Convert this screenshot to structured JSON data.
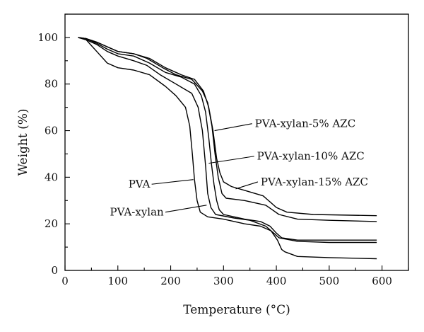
{
  "chart_data": {
    "type": "line",
    "xlabel": "Temperature (°C)",
    "ylabel": "Weight (%)",
    "xlim": [
      0,
      650
    ],
    "ylim": [
      0,
      110
    ],
    "xticks": [
      0,
      100,
      200,
      300,
      400,
      500,
      600
    ],
    "yticks": [
      0,
      20,
      40,
      60,
      80,
      100
    ],
    "x_minor_step": 50,
    "y_minor_step": 10,
    "grid": false,
    "legend": "none",
    "line_color": "#000000",
    "series": [
      {
        "name": "PVA",
        "points": [
          [
            25,
            100
          ],
          [
            40,
            99
          ],
          [
            60,
            94
          ],
          [
            80,
            89
          ],
          [
            100,
            87
          ],
          [
            130,
            86
          ],
          [
            160,
            84
          ],
          [
            190,
            79
          ],
          [
            210,
            75
          ],
          [
            228,
            70
          ],
          [
            236,
            62
          ],
          [
            241,
            50
          ],
          [
            245,
            39
          ],
          [
            250,
            30
          ],
          [
            256,
            25
          ],
          [
            270,
            23
          ],
          [
            300,
            22
          ],
          [
            340,
            20
          ],
          [
            370,
            19
          ],
          [
            390,
            17
          ],
          [
            402,
            13
          ],
          [
            410,
            9
          ],
          [
            416,
            8
          ],
          [
            440,
            6
          ],
          [
            500,
            5.5
          ],
          [
            590,
            5
          ]
        ]
      },
      {
        "name": "PVA-xylan",
        "points": [
          [
            25,
            100
          ],
          [
            40,
            99
          ],
          [
            60,
            97
          ],
          [
            80,
            94
          ],
          [
            100,
            92
          ],
          [
            130,
            90
          ],
          [
            155,
            88
          ],
          [
            180,
            84
          ],
          [
            210,
            80
          ],
          [
            240,
            76
          ],
          [
            252,
            70
          ],
          [
            260,
            60
          ],
          [
            266,
            45
          ],
          [
            270,
            33
          ],
          [
            276,
            27
          ],
          [
            285,
            24
          ],
          [
            320,
            22.5
          ],
          [
            350,
            21.5
          ],
          [
            380,
            19
          ],
          [
            395,
            16
          ],
          [
            405,
            14
          ],
          [
            440,
            12.5
          ],
          [
            500,
            12
          ],
          [
            590,
            12
          ]
        ]
      },
      {
        "name": "PVA-xylan-5% AZC",
        "points": [
          [
            25,
            100
          ],
          [
            40,
            99.5
          ],
          [
            60,
            98
          ],
          [
            80,
            96
          ],
          [
            100,
            94
          ],
          [
            130,
            93
          ],
          [
            155,
            91
          ],
          [
            185,
            87
          ],
          [
            210,
            84
          ],
          [
            240,
            82
          ],
          [
            260,
            77
          ],
          [
            270,
            72
          ],
          [
            278,
            62
          ],
          [
            284,
            50
          ],
          [
            290,
            40
          ],
          [
            297,
            33
          ],
          [
            305,
            31
          ],
          [
            340,
            30
          ],
          [
            380,
            28
          ],
          [
            405,
            24
          ],
          [
            440,
            22
          ],
          [
            500,
            21.5
          ],
          [
            590,
            21
          ]
        ]
      },
      {
        "name": "PVA-xylan-10% AZC",
        "points": [
          [
            25,
            100
          ],
          [
            40,
            99.5
          ],
          [
            60,
            97.5
          ],
          [
            80,
            95
          ],
          [
            100,
            93
          ],
          [
            130,
            92
          ],
          [
            160,
            89
          ],
          [
            190,
            85
          ],
          [
            220,
            83
          ],
          [
            245,
            80
          ],
          [
            258,
            75
          ],
          [
            266,
            68
          ],
          [
            272,
            57
          ],
          [
            277,
            46
          ],
          [
            282,
            37
          ],
          [
            287,
            30
          ],
          [
            292,
            26
          ],
          [
            300,
            24
          ],
          [
            340,
            22
          ],
          [
            370,
            21
          ],
          [
            388,
            19
          ],
          [
            400,
            16
          ],
          [
            410,
            14
          ],
          [
            440,
            13
          ],
          [
            500,
            13
          ],
          [
            590,
            13
          ]
        ]
      },
      {
        "name": "PVA-xylan-15% AZC",
        "points": [
          [
            25,
            100
          ],
          [
            40,
            99.5
          ],
          [
            60,
            98
          ],
          [
            80,
            96
          ],
          [
            100,
            94
          ],
          [
            130,
            93
          ],
          [
            160,
            91
          ],
          [
            190,
            87
          ],
          [
            220,
            84
          ],
          [
            245,
            82
          ],
          [
            262,
            77
          ],
          [
            272,
            70
          ],
          [
            280,
            60
          ],
          [
            287,
            48
          ],
          [
            293,
            42
          ],
          [
            300,
            38
          ],
          [
            315,
            36
          ],
          [
            345,
            34
          ],
          [
            375,
            32
          ],
          [
            400,
            27
          ],
          [
            420,
            25
          ],
          [
            470,
            24
          ],
          [
            590,
            23.5
          ]
        ]
      }
    ],
    "annotations": [
      {
        "text": "PVA-xylan-5% AZC",
        "text_x": 354,
        "text_y": 63,
        "point": [
          283,
          60
        ]
      },
      {
        "text": "PVA-xylan-10% AZC",
        "text_x": 358,
        "text_y": 49,
        "point": [
          272,
          46
        ]
      },
      {
        "text": "PVA-xylan-15% AZC",
        "text_x": 365,
        "text_y": 38,
        "point": [
          323,
          35
        ]
      },
      {
        "text": "PVA",
        "text_x": 120,
        "text_y": 37,
        "point": [
          243,
          39
        ]
      },
      {
        "text": "PVA-xylan",
        "text_x": 85,
        "text_y": 25,
        "point": [
          268,
          28
        ]
      }
    ]
  }
}
